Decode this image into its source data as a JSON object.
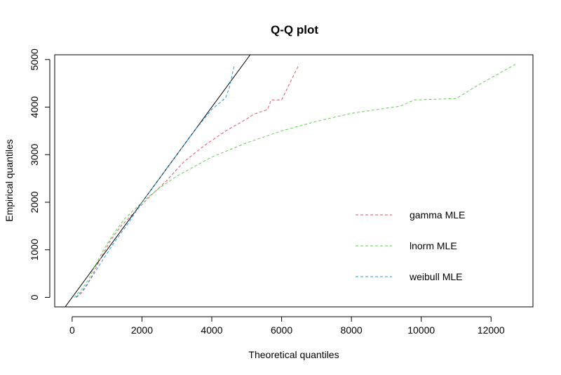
{
  "chart_data": {
    "type": "line",
    "title": "Q-Q plot",
    "xlabel": "Theoretical quantiles",
    "ylabel": "Empirical quantiles",
    "xlim": [
      -500,
      13200
    ],
    "ylim": [
      -200,
      5100
    ],
    "x_ticks": [
      0,
      2000,
      4000,
      6000,
      8000,
      10000,
      12000
    ],
    "y_ticks": [
      0,
      1000,
      2000,
      3000,
      4000,
      5000
    ],
    "grid": false,
    "legend_position": "right",
    "reference_line": {
      "slope": 1,
      "intercept": 0,
      "color": "#000000",
      "style": "solid"
    },
    "series": [
      {
        "name": "gamma MLE",
        "color": "#DF536B",
        "style": "dashed",
        "points": [
          [
            120,
            0
          ],
          [
            280,
            100
          ],
          [
            420,
            250
          ],
          [
            600,
            500
          ],
          [
            800,
            800
          ],
          [
            1100,
            1200
          ],
          [
            1400,
            1500
          ],
          [
            1800,
            1800
          ],
          [
            2200,
            2100
          ],
          [
            2700,
            2450
          ],
          [
            3200,
            2850
          ],
          [
            3800,
            3200
          ],
          [
            4400,
            3500
          ],
          [
            5000,
            3750
          ],
          [
            5200,
            3850
          ],
          [
            5600,
            3950
          ],
          [
            5700,
            4150
          ],
          [
            6000,
            4150
          ],
          [
            6200,
            4450
          ],
          [
            6500,
            4900
          ]
        ]
      },
      {
        "name": "lnorm MLE",
        "color": "#61D04F",
        "style": "dashed",
        "points": [
          [
            50,
            0
          ],
          [
            250,
            150
          ],
          [
            450,
            350
          ],
          [
            650,
            650
          ],
          [
            900,
            1000
          ],
          [
            1200,
            1350
          ],
          [
            1500,
            1650
          ],
          [
            2000,
            2000
          ],
          [
            2500,
            2300
          ],
          [
            3000,
            2550
          ],
          [
            4000,
            2950
          ],
          [
            5000,
            3250
          ],
          [
            6000,
            3500
          ],
          [
            7000,
            3700
          ],
          [
            8000,
            3870
          ],
          [
            9400,
            4020
          ],
          [
            9800,
            4150
          ],
          [
            11000,
            4180
          ],
          [
            11600,
            4450
          ],
          [
            12700,
            4900
          ]
        ]
      },
      {
        "name": "weibull MLE",
        "color": "#2297E6",
        "style": "dashed",
        "points": [
          [
            100,
            0
          ],
          [
            300,
            150
          ],
          [
            500,
            350
          ],
          [
            800,
            700
          ],
          [
            1200,
            1150
          ],
          [
            1600,
            1550
          ],
          [
            2000,
            2000
          ],
          [
            2500,
            2500
          ],
          [
            3000,
            3000
          ],
          [
            3500,
            3500
          ],
          [
            4000,
            3950
          ],
          [
            4400,
            4200
          ],
          [
            4500,
            4400
          ],
          [
            4650,
            4900
          ]
        ]
      }
    ]
  }
}
